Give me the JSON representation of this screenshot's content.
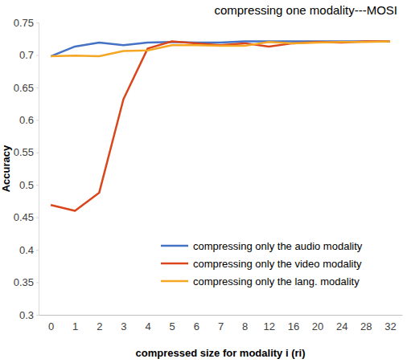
{
  "chart_data": {
    "type": "line",
    "title": "compressing one modality---MOSI",
    "x_label": "compressed size for modality i (ri)",
    "y_label": "Accuracy",
    "categories": [
      "0",
      "1",
      "2",
      "3",
      "4",
      "5",
      "6",
      "7",
      "8",
      "12",
      "16",
      "20",
      "24",
      "28",
      "32"
    ],
    "series": [
      {
        "name": "compressing only the audio modality",
        "color": "#4472c4",
        "values": [
          0.698,
          0.713,
          0.719,
          0.715,
          0.719,
          0.72,
          0.719,
          0.719,
          0.721,
          0.721,
          0.721,
          0.721,
          0.721,
          0.721,
          0.721
        ]
      },
      {
        "name": "compressing only the video modality",
        "color": "#d9461c",
        "values": [
          0.469,
          0.46,
          0.488,
          0.632,
          0.71,
          0.721,
          0.718,
          0.715,
          0.718,
          0.713,
          0.718,
          0.72,
          0.719,
          0.721,
          0.721
        ]
      },
      {
        "name": "compressing only the lang. modality",
        "color": "#f5a623",
        "values": [
          0.698,
          0.699,
          0.698,
          0.706,
          0.707,
          0.715,
          0.715,
          0.714,
          0.714,
          0.72,
          0.718,
          0.719,
          0.72,
          0.72,
          0.721
        ]
      }
    ],
    "ylim": [
      0.3,
      0.75
    ],
    "yticks": [
      0.3,
      0.35,
      0.4,
      0.45,
      0.5,
      0.55,
      0.6,
      0.65,
      0.7,
      0.75
    ],
    "grid": false,
    "legend": "lower right"
  }
}
